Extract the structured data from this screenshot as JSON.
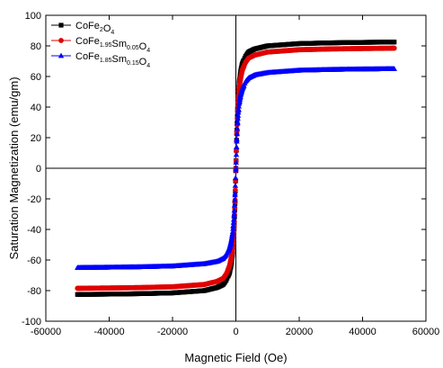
{
  "chart_data": {
    "type": "line",
    "title": "",
    "xlabel": "Magnetic Field (Oe)",
    "ylabel": "Saturation Magnetization (emu/gm)",
    "xlim": [
      -60000,
      60000
    ],
    "ylim": [
      -100,
      100
    ],
    "x_ticks": [
      -60000,
      -40000,
      -20000,
      0,
      20000,
      40000,
      60000
    ],
    "y_ticks": [
      -100,
      -80,
      -60,
      -40,
      -20,
      0,
      20,
      40,
      60,
      80,
      100
    ],
    "x_tick_labels": [
      "-60000",
      "-40000",
      "-20000",
      "0",
      "20000",
      "40000",
      "60000"
    ],
    "y_tick_labels": [
      "-100",
      "-80",
      "-60",
      "-40",
      "-20",
      "0",
      "20",
      "40",
      "60",
      "80",
      "100"
    ],
    "reference_lines": {
      "x": 0,
      "y": 0
    },
    "legend_position": "top-left",
    "series": [
      {
        "name": "CoFe2O4",
        "legend_parts": [
          [
            "CoFe",
            ""
          ],
          [
            "2",
            "sub"
          ],
          [
            "O",
            ""
          ],
          [
            "4",
            "sub"
          ]
        ],
        "marker": "square",
        "color": "#000000",
        "x": [
          -50000,
          -40000,
          -30000,
          -20000,
          -10000,
          -6000,
          -4000,
          -3000,
          -2000,
          -1500,
          -1000,
          -600,
          -300,
          0,
          300,
          600,
          1000,
          1500,
          2000,
          3000,
          4000,
          6000,
          10000,
          20000,
          30000,
          40000,
          50000
        ],
        "y": [
          -82.5,
          -82.3,
          -82,
          -81.5,
          -80,
          -78,
          -76,
          -73,
          -68,
          -63,
          -55,
          -42,
          -25,
          0,
          25,
          42,
          55,
          63,
          68,
          73,
          76,
          78,
          80,
          81.5,
          82,
          82.3,
          82.5
        ]
      },
      {
        "name": "CoFe1.95Sm0.05O4",
        "legend_parts": [
          [
            "CoFe",
            ""
          ],
          [
            "1.95",
            "sub"
          ],
          [
            "Sm",
            ""
          ],
          [
            "0.05",
            "sub"
          ],
          [
            "O",
            ""
          ],
          [
            "4",
            "sub"
          ]
        ],
        "marker": "circle",
        "color": "#e00000",
        "x": [
          -50000,
          -40000,
          -30000,
          -20000,
          -10000,
          -6000,
          -4000,
          -3000,
          -2000,
          -1500,
          -1000,
          -600,
          -300,
          0,
          300,
          600,
          1000,
          1500,
          2000,
          3000,
          4000,
          6000,
          10000,
          20000,
          30000,
          40000,
          50000
        ],
        "y": [
          -78.5,
          -78.3,
          -78,
          -77.5,
          -76,
          -74,
          -72,
          -69,
          -64,
          -59,
          -52,
          -40,
          -24,
          0,
          24,
          40,
          52,
          59,
          64,
          69,
          72,
          74,
          76,
          77.5,
          78,
          78.3,
          78.5
        ]
      },
      {
        "name": "CoFe1.85Sm0.15O4",
        "legend_parts": [
          [
            "CoFe",
            ""
          ],
          [
            "1.85",
            "sub"
          ],
          [
            "Sm",
            ""
          ],
          [
            "0.15",
            "sub"
          ],
          [
            "O",
            ""
          ],
          [
            "4",
            "sub"
          ]
        ],
        "marker": "triangle",
        "color": "#0000ff",
        "x": [
          -50000,
          -40000,
          -30000,
          -20000,
          -10000,
          -6000,
          -4000,
          -3000,
          -2000,
          -1500,
          -1000,
          -600,
          -300,
          0,
          300,
          600,
          1000,
          1500,
          2000,
          3000,
          4000,
          6000,
          10000,
          20000,
          30000,
          40000,
          50000
        ],
        "y": [
          -65,
          -64.8,
          -64.5,
          -64,
          -62.5,
          -61,
          -59,
          -56.5,
          -52,
          -48,
          -42,
          -32,
          -19,
          0,
          19,
          32,
          42,
          48,
          52,
          56.5,
          59,
          61,
          62.5,
          64,
          64.5,
          64.8,
          65
        ]
      }
    ]
  }
}
